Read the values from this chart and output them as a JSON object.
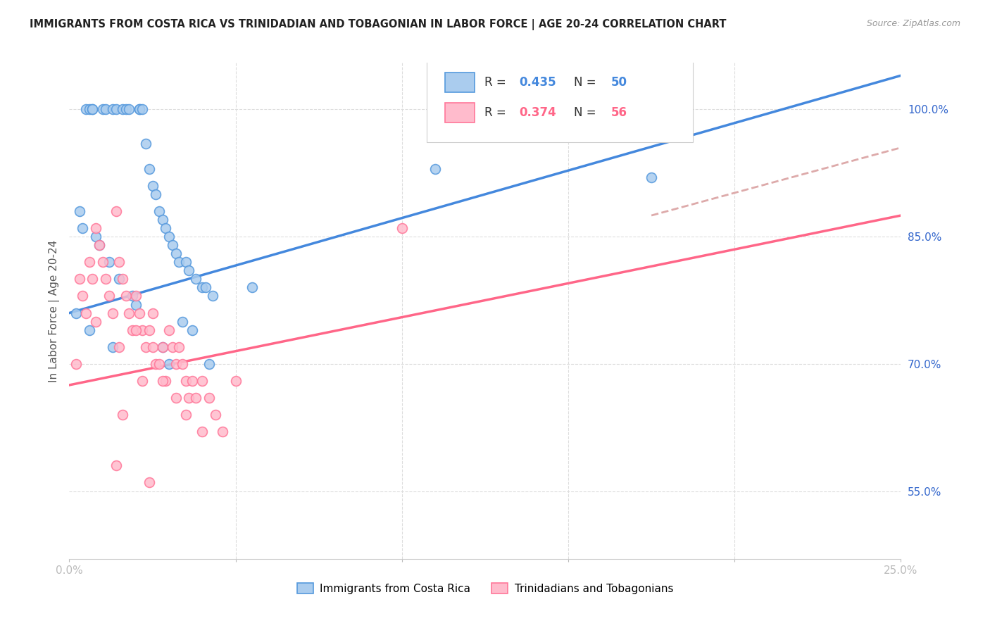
{
  "title": "IMMIGRANTS FROM COSTA RICA VS TRINIDADIAN AND TOBAGONIAN IN LABOR FORCE | AGE 20-24 CORRELATION CHART",
  "source": "Source: ZipAtlas.com",
  "ylabel": "In Labor Force | Age 20-24",
  "xlim": [
    0.0,
    0.25
  ],
  "ylim": [
    0.47,
    1.055
  ],
  "ytick_labels_right": [
    "55.0%",
    "70.0%",
    "85.0%",
    "100.0%"
  ],
  "ytick_positions_right": [
    0.55,
    0.7,
    0.85,
    1.0
  ],
  "blue_R": 0.435,
  "blue_N": 50,
  "pink_R": 0.374,
  "pink_N": 56,
  "blue_scatter_color_face": "#AACCEE",
  "blue_scatter_color_edge": "#5599DD",
  "pink_scatter_color_face": "#FFBBCC",
  "pink_scatter_color_edge": "#FF7799",
  "blue_line_color": "#4488DD",
  "pink_line_color": "#FF6688",
  "dashed_line_color": "#DDAAAA",
  "legend_label_blue": "Immigrants from Costa Rica",
  "legend_label_pink": "Trinidadians and Tobagonians",
  "blue_scatter_x": [
    0.005,
    0.006,
    0.007,
    0.007,
    0.01,
    0.011,
    0.013,
    0.014,
    0.016,
    0.017,
    0.018,
    0.021,
    0.021,
    0.022,
    0.023,
    0.024,
    0.025,
    0.026,
    0.027,
    0.028,
    0.029,
    0.03,
    0.031,
    0.032,
    0.033,
    0.035,
    0.036,
    0.038,
    0.04,
    0.041,
    0.003,
    0.004,
    0.008,
    0.009,
    0.012,
    0.015,
    0.019,
    0.02,
    0.034,
    0.037,
    0.043,
    0.055,
    0.11,
    0.175,
    0.002,
    0.006,
    0.013,
    0.028,
    0.03,
    0.042
  ],
  "blue_scatter_y": [
    1.0,
    1.0,
    1.0,
    1.0,
    1.0,
    1.0,
    1.0,
    1.0,
    1.0,
    1.0,
    1.0,
    1.0,
    1.0,
    1.0,
    0.96,
    0.93,
    0.91,
    0.9,
    0.88,
    0.87,
    0.86,
    0.85,
    0.84,
    0.83,
    0.82,
    0.82,
    0.81,
    0.8,
    0.79,
    0.79,
    0.88,
    0.86,
    0.85,
    0.84,
    0.82,
    0.8,
    0.78,
    0.77,
    0.75,
    0.74,
    0.78,
    0.79,
    0.93,
    0.92,
    0.76,
    0.74,
    0.72,
    0.72,
    0.7,
    0.7
  ],
  "pink_scatter_x": [
    0.003,
    0.004,
    0.005,
    0.006,
    0.007,
    0.008,
    0.009,
    0.01,
    0.011,
    0.012,
    0.013,
    0.014,
    0.015,
    0.016,
    0.017,
    0.018,
    0.019,
    0.02,
    0.021,
    0.022,
    0.023,
    0.024,
    0.025,
    0.026,
    0.027,
    0.028,
    0.029,
    0.03,
    0.031,
    0.032,
    0.033,
    0.034,
    0.035,
    0.036,
    0.037,
    0.038,
    0.04,
    0.042,
    0.044,
    0.046,
    0.05,
    0.1,
    0.002,
    0.008,
    0.015,
    0.02,
    0.025,
    0.028,
    0.032,
    0.035,
    0.04,
    0.016,
    0.022,
    0.014,
    0.024,
    0.18
  ],
  "pink_scatter_y": [
    0.8,
    0.78,
    0.76,
    0.82,
    0.8,
    0.86,
    0.84,
    0.82,
    0.8,
    0.78,
    0.76,
    0.88,
    0.82,
    0.8,
    0.78,
    0.76,
    0.74,
    0.78,
    0.76,
    0.74,
    0.72,
    0.74,
    0.72,
    0.7,
    0.7,
    0.72,
    0.68,
    0.74,
    0.72,
    0.7,
    0.72,
    0.7,
    0.68,
    0.66,
    0.68,
    0.66,
    0.68,
    0.66,
    0.64,
    0.62,
    0.68,
    0.86,
    0.7,
    0.75,
    0.72,
    0.74,
    0.76,
    0.68,
    0.66,
    0.64,
    0.62,
    0.64,
    0.68,
    0.58,
    0.56,
    1.0
  ],
  "blue_line_x": [
    0.0,
    0.25
  ],
  "blue_line_y": [
    0.76,
    1.04
  ],
  "pink_line_x": [
    0.0,
    0.25
  ],
  "pink_line_y": [
    0.675,
    0.875
  ],
  "dashed_line_x": [
    0.175,
    0.25
  ],
  "dashed_line_y": [
    0.875,
    0.955
  ],
  "background_color": "#ffffff",
  "grid_color": "#dddddd"
}
